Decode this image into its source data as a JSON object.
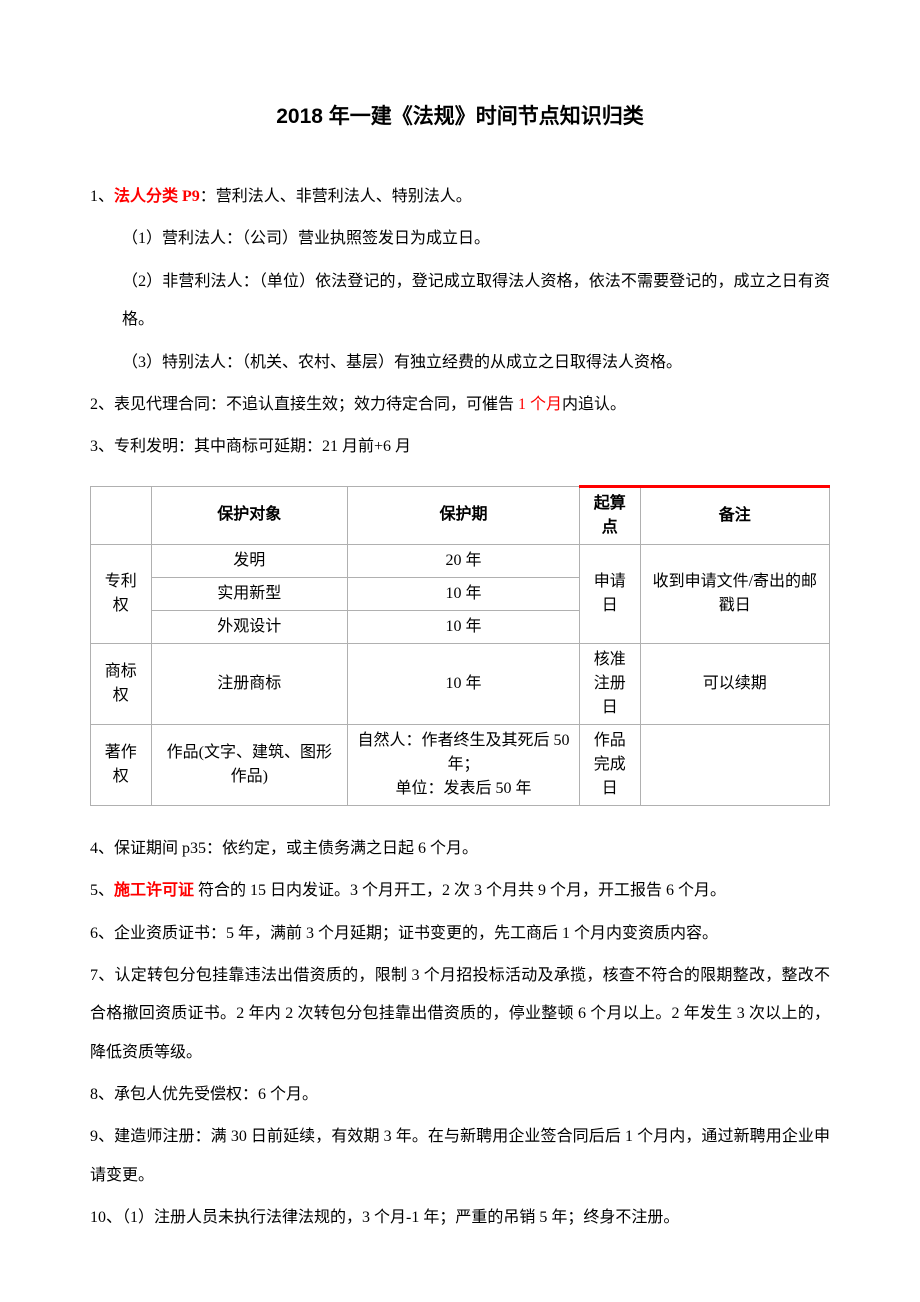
{
  "title": "2018 年一建《法规》时间节点知识归类",
  "p1": {
    "num": "1、",
    "redPart": "法人分类 P9",
    "rest": "：营利法人、非营利法人、特别法人。"
  },
  "p1_1": "（1）营利法人：（公司）营业执照签发日为成立日。",
  "p1_2": "（2）非营利法人：（单位）依法登记的，登记成立取得法人资格，依法不需要登记的，成立之日有资格。",
  "p1_3": "（3）特别法人：（机关、农村、基层）有独立经费的从成立之日取得法人资格。",
  "p2": {
    "before": "2、表见代理合同：不追认直接生效；效力待定合同，可催告 ",
    "red": "1 个月",
    "after": "内追认。"
  },
  "p3": "3、专利发明：其中商标可延期：21 月前+6 月",
  "table": {
    "headers": [
      "",
      "保护对象",
      "保护期",
      "起算点",
      "备注"
    ],
    "rows": [
      {
        "cat": "专利权",
        "obj": "发明",
        "period": "20 年",
        "start": "申请日",
        "note": "收到申请文件/寄出的邮戳日"
      },
      {
        "obj": "实用新型",
        "period": "10 年"
      },
      {
        "obj": "外观设计",
        "period": "10 年"
      },
      {
        "cat": "商标权",
        "obj": "注册商标",
        "period": "10 年",
        "start": "核准\n注册日",
        "note": "可以续期"
      },
      {
        "cat": "著作权",
        "obj": "作品(文字、建筑、图形作品)",
        "period": "自然人：作者终生及其死后 50年；\n单位：发表后 50 年",
        "start": "作品\n完成日",
        "note": ""
      }
    ]
  },
  "p4": "4、保证期间 p35：依约定，或主债务满之日起 6 个月。",
  "p5": {
    "num": "5、",
    "red": "施工许可证 ",
    "rest": "符合的 15 日内发证。3 个月开工，2 次 3 个月共 9 个月，开工报告 6 个月。"
  },
  "p6": "6、企业资质证书：5 年，满前 3 个月延期；证书变更的，先工商后 1 个月内变资质内容。",
  "p7": "7、认定转包分包挂靠违法出借资质的，限制 3 个月招投标活动及承揽，核查不符合的限期整改，整改不合格撤回资质证书。2 年内 2 次转包分包挂靠出借资质的，停业整顿 6 个月以上。2 年发生 3 次以上的，降低资质等级。",
  "p8": "8、承包人优先受偿权：6 个月。",
  "p9": "9、建造师注册：满 30 日前延续，有效期 3 年。在与新聘用企业签合同后后 1 个月内，通过新聘用企业申请变更。",
  "p10": "10、（1）注册人员未执行法律法规的，3 个月-1 年；严重的吊销 5 年；终身不注册。",
  "colors": {
    "red": "#ff0000",
    "text": "#000000",
    "border": "#b0b0b0",
    "bg": "#ffffff"
  },
  "font": {
    "body_size": 16,
    "title_size": 21,
    "line_height": 2.4
  }
}
